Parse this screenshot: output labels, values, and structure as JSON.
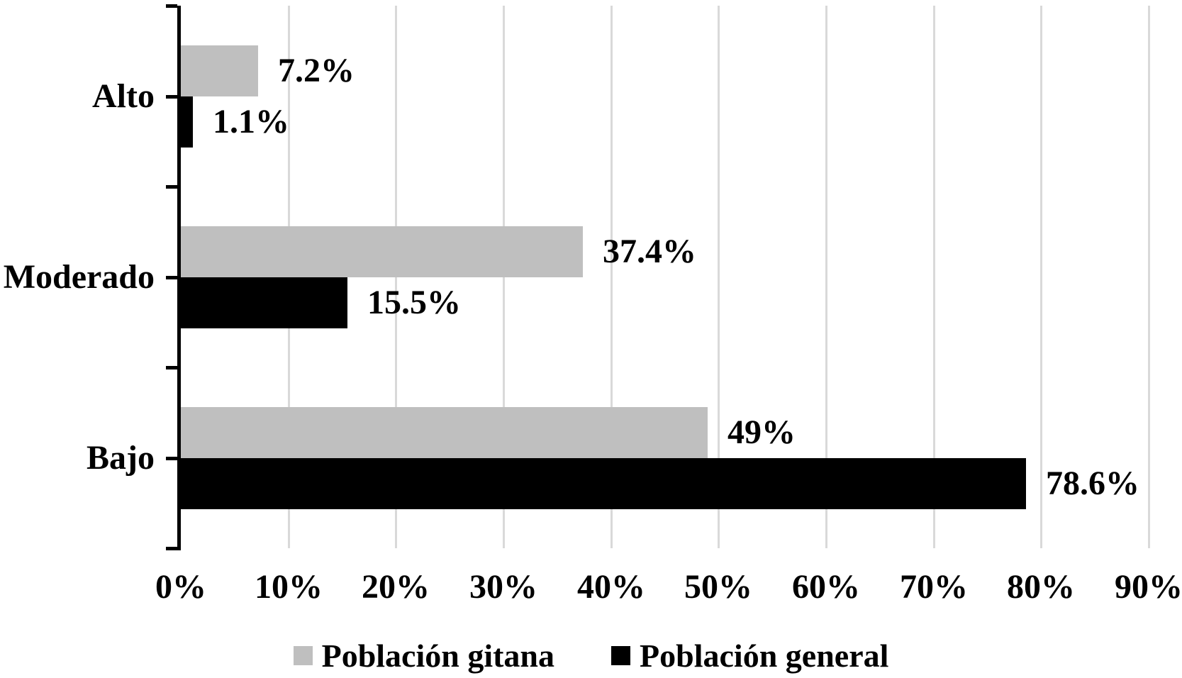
{
  "chart_data": {
    "type": "bar",
    "orientation": "horizontal",
    "title": "",
    "categories": [
      "Alto",
      "Moderado",
      "Bajo"
    ],
    "series": [
      {
        "name": "Población gitana",
        "color": "#bfbfbf",
        "values": [
          7.2,
          37.4,
          49
        ],
        "data_labels": [
          "7.2%",
          "37.4%",
          "49%"
        ]
      },
      {
        "name": "Población general",
        "color": "#000000",
        "values": [
          1.1,
          15.5,
          78.6
        ],
        "data_labels": [
          "1.1%",
          "15.5%",
          "78.6%"
        ]
      }
    ],
    "x_axis": {
      "min": 0,
      "max": 90,
      "step": 10,
      "tick_labels": [
        "0%",
        "10%",
        "20%",
        "30%",
        "40%",
        "50%",
        "60%",
        "70%",
        "80%",
        "90%"
      ]
    },
    "grid": true,
    "gridline_color": "#d9d9d9",
    "axis_color": "#000000",
    "legend_position": "bottom"
  }
}
